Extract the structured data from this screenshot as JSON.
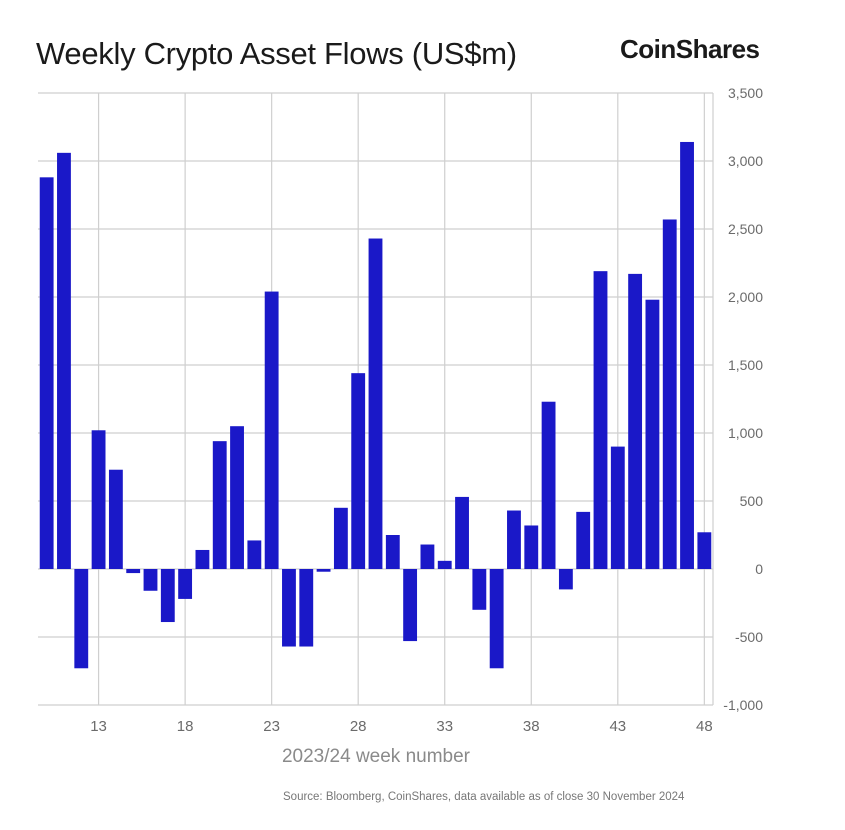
{
  "title": "Weekly Crypto Asset Flows (US$m)",
  "brand": "CoinShares",
  "source": "Source: Bloomberg, CoinShares, data available as of close 30 November 2024",
  "colors": {
    "bar": "#1a18c8",
    "grid": "#cfcfcf",
    "axis_text": "#6b6b6b"
  },
  "chart_data": {
    "type": "bar",
    "title": "Weekly Crypto Asset Flows (US$m)",
    "xlabel": "2023/24 week number",
    "ylabel": "",
    "ylim": [
      -1000,
      3500
    ],
    "y_ticks": [
      {
        "value": 3500,
        "label": "3,500"
      },
      {
        "value": 3000,
        "label": "3,000"
      },
      {
        "value": 2500,
        "label": "2,500"
      },
      {
        "value": 2000,
        "label": "2,000"
      },
      {
        "value": 1500,
        "label": "1,500"
      },
      {
        "value": 1000,
        "label": "1,000"
      },
      {
        "value": 500,
        "label": "500"
      },
      {
        "value": 0,
        "label": "0"
      },
      {
        "value": -500,
        "label": "-500"
      },
      {
        "value": -1000,
        "label": "-1,000"
      }
    ],
    "x_ticks": [
      {
        "value": 13,
        "label": "13"
      },
      {
        "value": 18,
        "label": "18"
      },
      {
        "value": 23,
        "label": "23"
      },
      {
        "value": 28,
        "label": "28"
      },
      {
        "value": 33,
        "label": "33"
      },
      {
        "value": 38,
        "label": "38"
      },
      {
        "value": 43,
        "label": "43"
      },
      {
        "value": 48,
        "label": "48"
      }
    ],
    "xlim": [
      9.5,
      48.5
    ],
    "weeks": [
      10,
      11,
      12,
      13,
      14,
      15,
      16,
      17,
      18,
      19,
      20,
      21,
      22,
      23,
      24,
      25,
      26,
      27,
      28,
      29,
      30,
      31,
      32,
      33,
      34,
      35,
      36,
      37,
      38,
      39,
      40,
      41,
      42,
      43,
      44,
      45,
      46,
      47,
      48
    ],
    "values": [
      2880,
      3060,
      -730,
      1020,
      730,
      -30,
      -160,
      -390,
      -220,
      140,
      940,
      1050,
      210,
      2040,
      -570,
      -570,
      -20,
      450,
      1440,
      2430,
      250,
      -530,
      180,
      60,
      530,
      -300,
      -730,
      430,
      320,
      1230,
      -150,
      420,
      2190,
      900,
      2170,
      1980,
      2570,
      3140,
      270
    ],
    "grid": true,
    "legend": "none"
  }
}
